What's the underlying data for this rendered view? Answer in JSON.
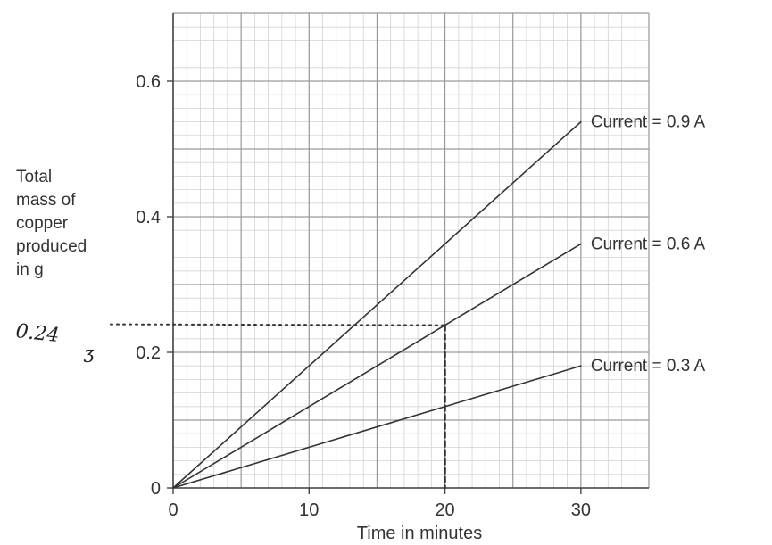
{
  "chart_data": {
    "type": "line",
    "xlabel": "Time in minutes",
    "ylabel": [
      "Total",
      "mass of",
      "copper",
      "produced",
      "in g"
    ],
    "xlim": [
      0,
      35
    ],
    "ylim": [
      0,
      0.7
    ],
    "xticks": [
      0,
      10,
      20,
      30
    ],
    "yticks": [
      0,
      0.2,
      0.4,
      0.6
    ],
    "xtick_labels": [
      "0",
      "10",
      "20",
      "30"
    ],
    "ytick_labels": [
      "0",
      "0.2",
      "0.4",
      "0.6"
    ],
    "grid": true,
    "series": [
      {
        "name": "Current = 0.9 A",
        "x": [
          0,
          30
        ],
        "y": [
          0,
          0.54
        ]
      },
      {
        "name": "Current = 0.6 A",
        "x": [
          0,
          30
        ],
        "y": [
          0,
          0.36
        ]
      },
      {
        "name": "Current = 0.3 A",
        "x": [
          0,
          30
        ],
        "y": [
          0,
          0.18
        ]
      }
    ],
    "annotation": {
      "text": "0.24",
      "mark": "ʒ",
      "x": 20,
      "y": 0.24
    },
    "colors": {
      "line": "#333333",
      "grid_major": "#9a9a9a",
      "grid_minor": "#d2d2d2",
      "dotted": "#333333"
    }
  }
}
